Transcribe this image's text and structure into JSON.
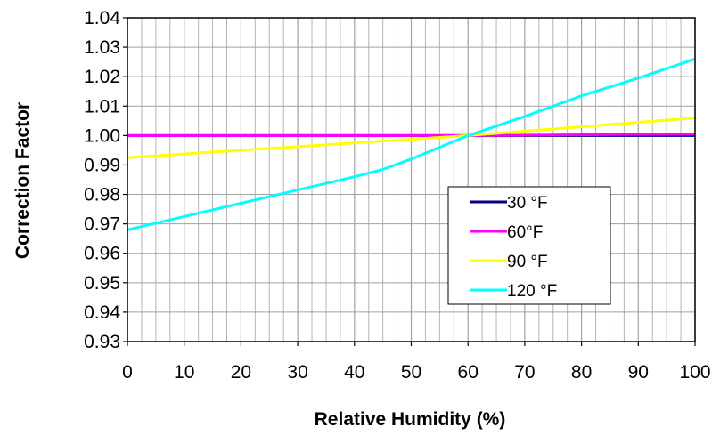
{
  "chart_data": {
    "type": "line",
    "title": "",
    "xlabel": "Relative Humidity (%)",
    "ylabel": "Correction Factor",
    "xlim": [
      0,
      100
    ],
    "ylim": [
      0.93,
      1.04
    ],
    "grid": true,
    "legend_position": "lower-right",
    "x_ticks": [
      "0",
      "10",
      "20",
      "30",
      "40",
      "50",
      "60",
      "70",
      "80",
      "90",
      "100"
    ],
    "y_ticks": [
      "1.04",
      "1.03",
      "1.02",
      "1.01",
      "1.00",
      "0.99",
      "0.98",
      "0.97",
      "0.96",
      "0.95",
      "0.94",
      "0.93"
    ],
    "series": [
      {
        "name": "30 °F",
        "color": "#000080",
        "x": [
          0,
          100
        ],
        "y": [
          1.0,
          1.0
        ]
      },
      {
        "name": "60°F",
        "color": "#ff00ff",
        "x": [
          0,
          60,
          100
        ],
        "y": [
          1.0,
          1.0,
          1.0005
        ]
      },
      {
        "name": "90 °F",
        "color": "#ffff00",
        "x": [
          0,
          60,
          100
        ],
        "y": [
          0.9925,
          1.0,
          1.006
        ]
      },
      {
        "name": "120 °F",
        "color": "#00ffff",
        "x": [
          0,
          10,
          20,
          30,
          40,
          45,
          50,
          60,
          70,
          80,
          90,
          100
        ],
        "y": [
          0.968,
          0.9725,
          0.977,
          0.9815,
          0.986,
          0.9885,
          0.992,
          1.0,
          1.0065,
          1.0135,
          1.0195,
          1.026
        ]
      }
    ]
  }
}
